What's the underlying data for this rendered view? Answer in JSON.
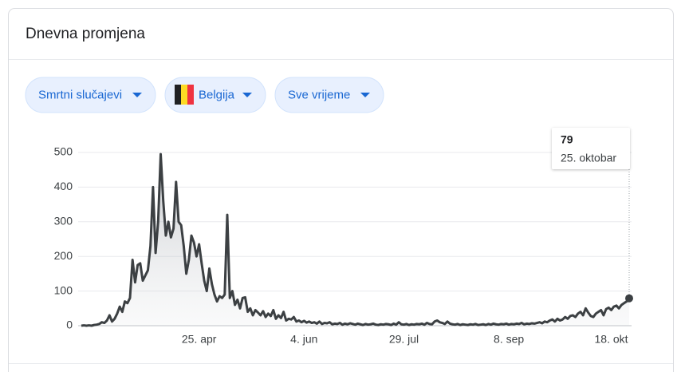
{
  "header": {
    "title": "Dnevna promjena"
  },
  "filters": [
    "Smrtni slučajevi",
    "Belgija",
    "Sve vrijeme"
  ],
  "chart_data": {
    "type": "line",
    "categories": [
      null,
      null,
      null,
      null,
      null,
      null,
      null,
      null,
      null,
      null,
      null,
      null,
      null,
      null,
      null,
      null,
      null,
      null,
      null,
      null,
      null,
      null,
      null,
      null,
      null,
      null,
      null,
      null,
      null,
      null,
      null,
      null,
      null,
      null,
      null,
      null,
      null,
      null,
      null,
      null,
      null,
      null,
      null,
      null,
      null,
      null,
      "25. apr",
      null,
      null,
      null,
      null,
      null,
      null,
      null,
      null,
      null,
      null,
      null,
      null,
      null,
      null,
      null,
      null,
      null,
      null,
      null,
      null,
      null,
      null,
      null,
      null,
      null,
      null,
      null,
      null,
      null,
      null,
      null,
      null,
      null,
      null,
      null,
      null,
      null,
      null,
      null,
      null,
      "4. jun",
      null,
      null,
      null,
      null,
      null,
      null,
      null,
      null,
      null,
      null,
      null,
      null,
      null,
      null,
      null,
      null,
      null,
      null,
      null,
      null,
      null,
      null,
      null,
      null,
      null,
      null,
      null,
      null,
      null,
      null,
      null,
      null,
      null,
      null,
      null,
      null,
      null,
      null,
      "29. jul",
      null,
      null,
      null,
      null,
      null,
      null,
      null,
      null,
      null,
      null,
      null,
      null,
      null,
      null,
      null,
      null,
      null,
      null,
      null,
      null,
      null,
      null,
      null,
      null,
      null,
      null,
      null,
      null,
      null,
      null,
      null,
      null,
      null,
      null,
      null,
      null,
      null,
      null,
      null,
      null,
      "8. sep",
      null,
      null,
      null,
      null,
      null,
      null,
      null,
      null,
      null,
      null,
      null,
      null,
      null,
      null,
      null,
      null,
      null,
      null,
      null,
      null,
      null,
      null,
      null,
      null,
      null,
      null,
      null,
      null,
      null,
      null,
      null,
      null,
      null,
      null,
      null,
      null,
      null,
      null,
      null,
      "18. okt",
      null,
      null,
      null,
      null,
      null,
      null,
      null
    ],
    "values": [
      0,
      1,
      0,
      1,
      0,
      2,
      3,
      5,
      10,
      8,
      15,
      30,
      12,
      20,
      35,
      55,
      40,
      70,
      65,
      80,
      190,
      125,
      175,
      180,
      130,
      145,
      160,
      230,
      400,
      210,
      300,
      495,
      360,
      260,
      300,
      255,
      280,
      415,
      300,
      290,
      230,
      150,
      190,
      260,
      240,
      200,
      235,
      180,
      130,
      100,
      165,
      120,
      90,
      70,
      85,
      80,
      90,
      320,
      80,
      100,
      60,
      75,
      50,
      80,
      82,
      40,
      50,
      30,
      45,
      38,
      30,
      42,
      25,
      35,
      28,
      45,
      20,
      30,
      22,
      40,
      15,
      20,
      18,
      25,
      12,
      15,
      10,
      14,
      9,
      12,
      8,
      10,
      6,
      12,
      5,
      8,
      7,
      10,
      4,
      6,
      5,
      8,
      3,
      6,
      4,
      7,
      5,
      3,
      6,
      4,
      2,
      5,
      3,
      4,
      6,
      3,
      2,
      4,
      3,
      5,
      4,
      2,
      6,
      3,
      10,
      4,
      3,
      5,
      2,
      4,
      3,
      5,
      4,
      6,
      3,
      8,
      5,
      4,
      12,
      15,
      10,
      8,
      5,
      12,
      6,
      4,
      3,
      5,
      2,
      4,
      3,
      2,
      4,
      3,
      5,
      2,
      3,
      4,
      2,
      5,
      3,
      6,
      4,
      3,
      5,
      4,
      6,
      3,
      5,
      4,
      6,
      5,
      8,
      4,
      6,
      5,
      7,
      6,
      8,
      10,
      7,
      12,
      10,
      15,
      18,
      12,
      20,
      15,
      18,
      25,
      20,
      28,
      30,
      25,
      35,
      40,
      30,
      50,
      38,
      28,
      25,
      35,
      40,
      45,
      30,
      48,
      52,
      45,
      55,
      58,
      50,
      60,
      65,
      70,
      79
    ],
    "color": "#3c4043",
    "ylim": [
      0,
      500
    ],
    "yticks": [
      0,
      100,
      200,
      300,
      400,
      500
    ],
    "grid": true,
    "tooltip": {
      "date": "25. oktobar"
    }
  }
}
